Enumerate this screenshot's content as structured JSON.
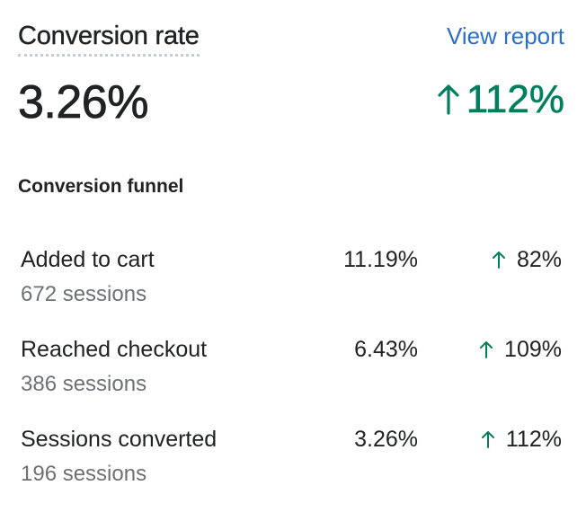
{
  "header": {
    "title": "Conversion rate",
    "view_report_label": "View report"
  },
  "metric": {
    "value": "3.26%",
    "change": "112%",
    "change_direction": "up"
  },
  "funnel": {
    "title": "Conversion funnel",
    "steps": [
      {
        "label": "Added to cart",
        "sessions": "672 sessions",
        "rate": "11.19%",
        "change": "82%",
        "change_direction": "up"
      },
      {
        "label": "Reached checkout",
        "sessions": "386 sessions",
        "rate": "6.43%",
        "change": "109%",
        "change_direction": "up"
      },
      {
        "label": "Sessions converted",
        "sessions": "196 sessions",
        "rate": "3.26%",
        "change": "112%",
        "change_direction": "up"
      }
    ]
  },
  "colors": {
    "positive": "#007f5f",
    "link": "#2c6ecb",
    "text": "#202223",
    "subdued": "#6d7175"
  },
  "icons": {
    "change_arrow": "arrow-up-icon"
  }
}
